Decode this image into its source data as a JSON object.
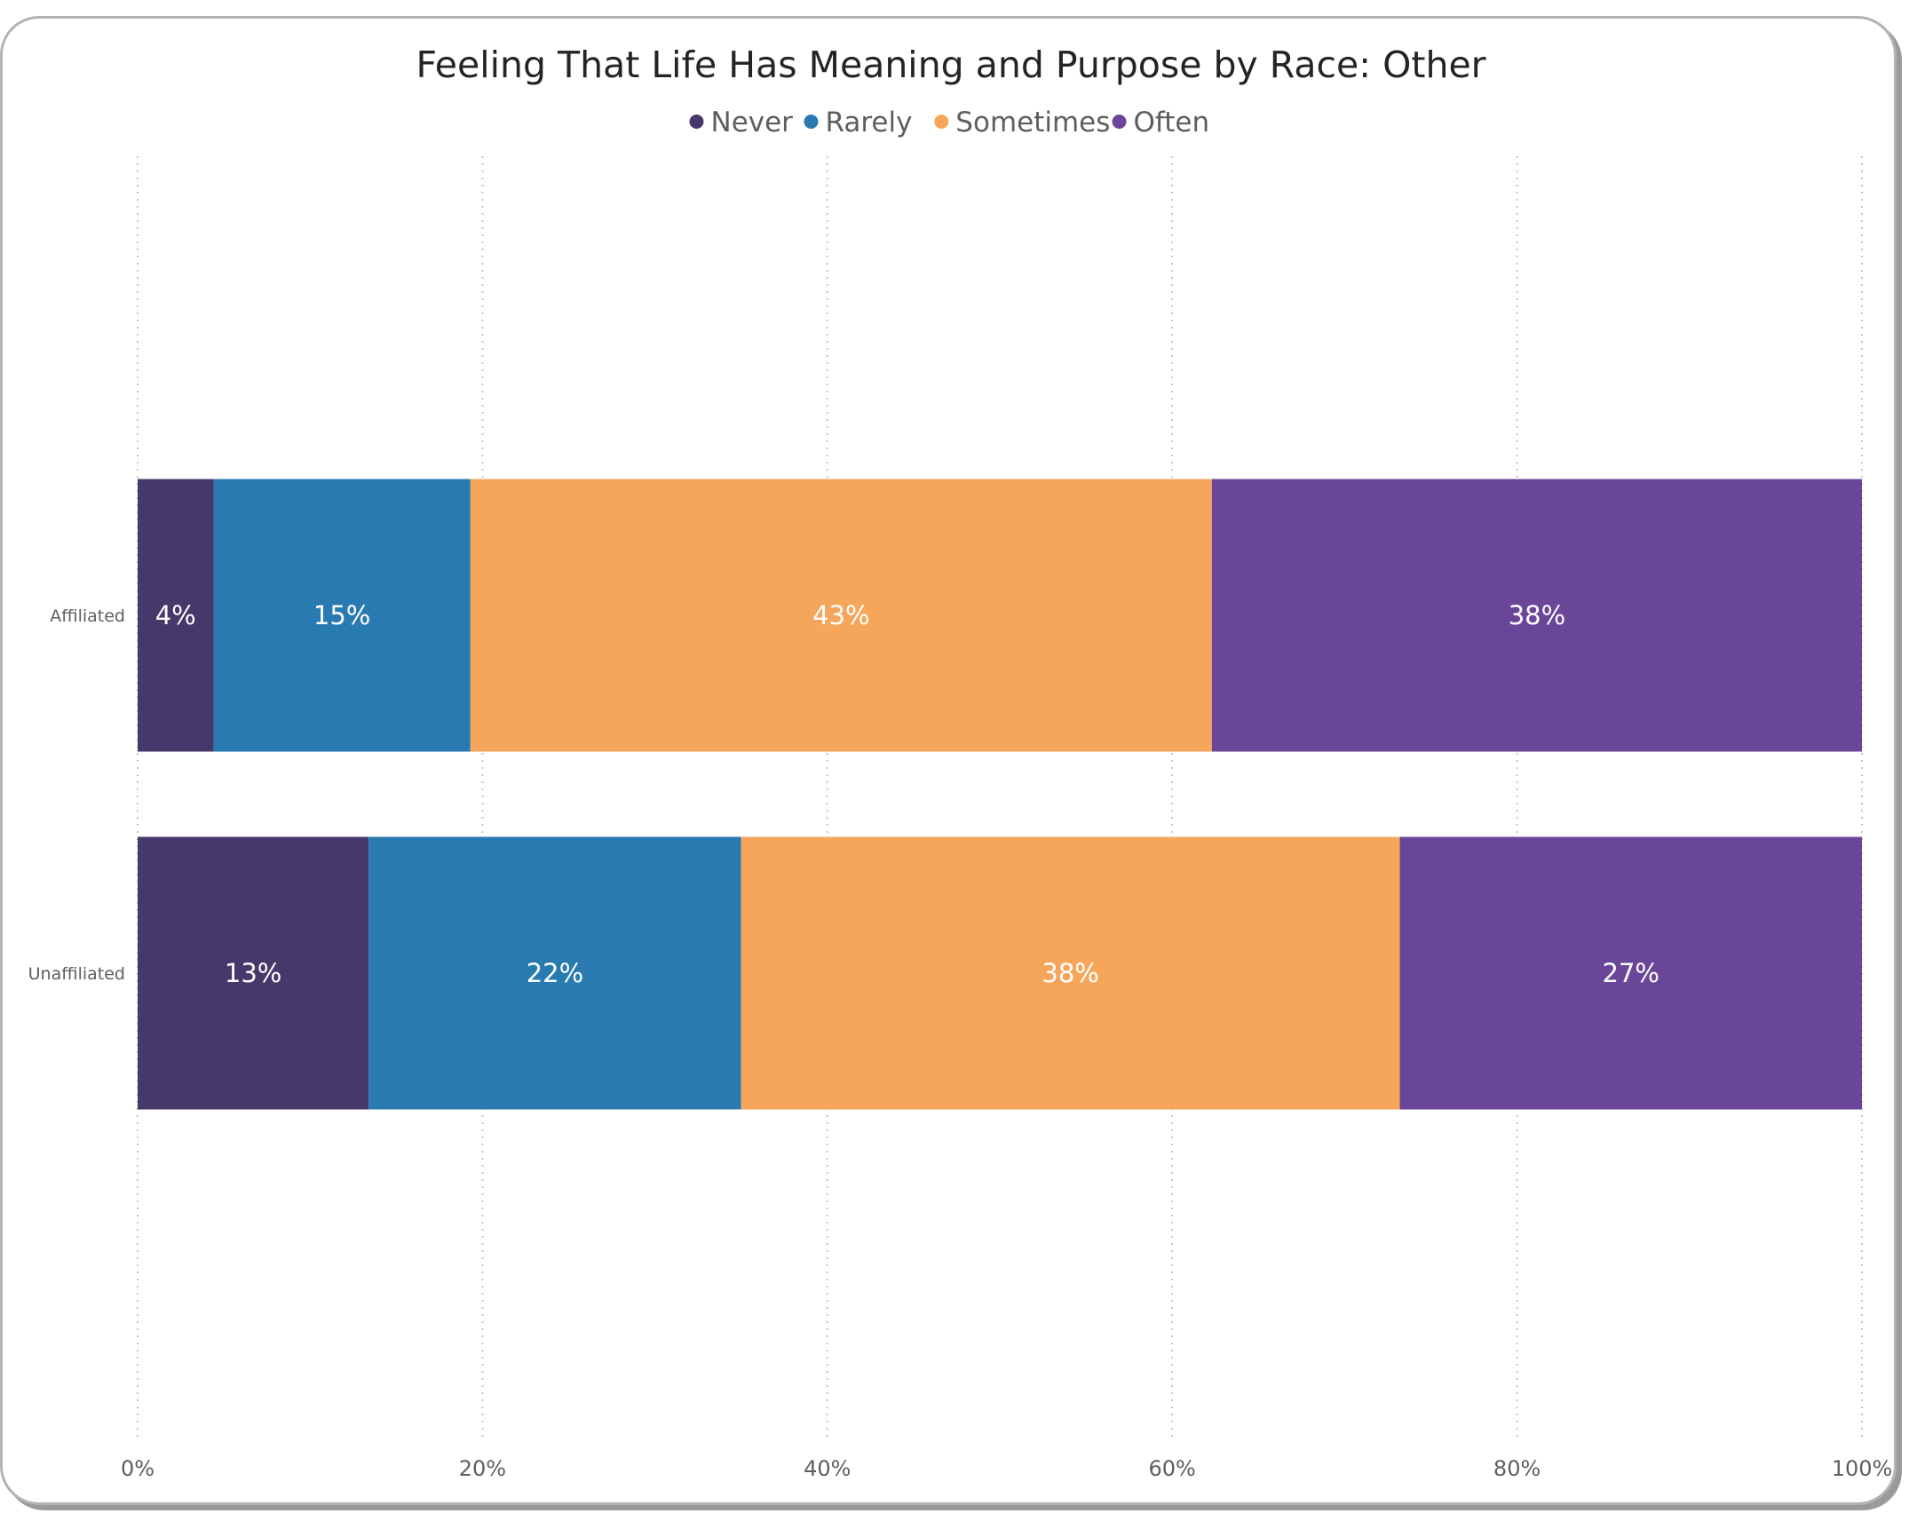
{
  "chart_data": {
    "type": "bar",
    "orientation": "horizontal",
    "stacked": "100%",
    "title": "Feeling That Life Has Meaning and Purpose by Race: Other",
    "categories": [
      "Affiliated",
      "Unaffiliated"
    ],
    "series": [
      {
        "name": "Never",
        "color": "#46386a",
        "values": [
          4.4,
          13.4
        ],
        "labels": [
          "4%",
          "13%"
        ]
      },
      {
        "name": "Rarely",
        "color": "#2a7ab2",
        "values": [
          14.9,
          21.6
        ],
        "labels": [
          "15%",
          "22%"
        ]
      },
      {
        "name": "Sometimes",
        "color": "#f5a65b",
        "values": [
          43.0,
          38.2
        ],
        "labels": [
          "43%",
          "38%"
        ]
      },
      {
        "name": "Often",
        "color": "#6a4698",
        "values": [
          37.7,
          26.8
        ],
        "labels": [
          "38%",
          "27%"
        ]
      }
    ],
    "xlim": [
      0,
      100
    ],
    "xticks": [
      "0%",
      "20%",
      "40%",
      "60%",
      "80%",
      "100%"
    ],
    "grid": true,
    "legend_position": "top-center"
  }
}
